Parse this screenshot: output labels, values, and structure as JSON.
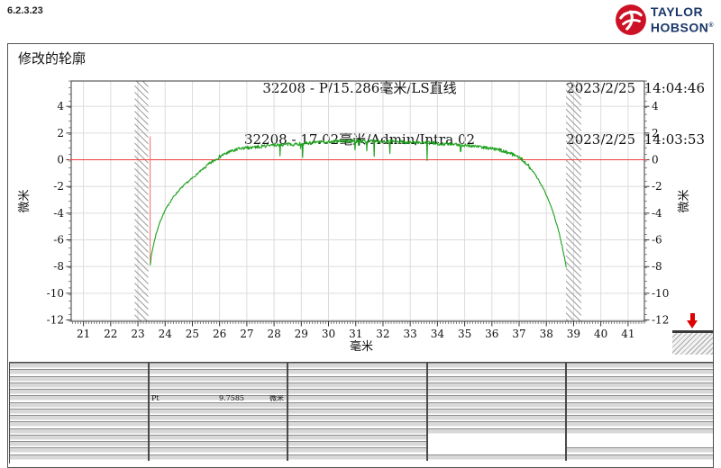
{
  "app": {
    "version": "6.2.3.23"
  },
  "brand": {
    "name_line1": "TAYLOR",
    "name_line2": "HOBSON",
    "registered_mark": "®",
    "logo_color": "#cd1126",
    "text_color": "#1a3668"
  },
  "header": {
    "title": "修改的轮廓",
    "measurement_line1": "32208 - P/15.286毫米/LS直线",
    "measurement_line2": "32208 - 17.02毫米/Admin/Intra 02",
    "modified_time": "2023/2/25  14:04:46",
    "measured_time": "2023/2/25  14:03:53"
  },
  "chart_data": {
    "type": "line",
    "title": "",
    "xlabel": "毫米",
    "ylabel_left": "微米",
    "ylabel_right": "微米",
    "xlim": [
      20.55,
      41.6
    ],
    "ylim": [
      -12.1,
      5.9
    ],
    "x_ticks": [
      21,
      22,
      23,
      24,
      25,
      26,
      27,
      28,
      29,
      30,
      31,
      32,
      33,
      34,
      35,
      36,
      37,
      38,
      39,
      40,
      41
    ],
    "y_ticks": [
      4,
      2,
      0,
      -2,
      -4,
      -6,
      -8,
      -10,
      -12
    ],
    "x_minor_step": 0.1,
    "y_minor_step": 0.5,
    "grid": true,
    "grid_color": "#dcdcdc",
    "border_color": "#3a3a3a",
    "zero_line": {
      "y": 0,
      "color": "#f03c3c"
    },
    "cursor": {
      "x": 23.45,
      "y_top": 1.75,
      "y_bottom": -7.75,
      "color": "#f56a6a"
    },
    "exclusion_bands_x": [
      [
        22.88,
        23.38
      ],
      [
        38.72,
        39.28
      ]
    ],
    "hatch_color": "#999999",
    "data_range_x": [
      23.45,
      38.73
    ],
    "trace": {
      "name": "measured-profile",
      "color": "#1da11d",
      "noise_amplitude": 0.13,
      "spike_rate": 0.022,
      "spike_max_depth": 1.05,
      "points": [
        [
          23.45,
          -7.85
        ],
        [
          23.5,
          -7.1
        ],
        [
          23.57,
          -6.4
        ],
        [
          23.65,
          -5.7
        ],
        [
          23.75,
          -5.0
        ],
        [
          23.87,
          -4.35
        ],
        [
          24.0,
          -3.8
        ],
        [
          24.15,
          -3.25
        ],
        [
          24.3,
          -2.8
        ],
        [
          24.5,
          -2.3
        ],
        [
          24.7,
          -1.9
        ],
        [
          24.9,
          -1.55
        ],
        [
          25.1,
          -1.2
        ],
        [
          25.3,
          -0.85
        ],
        [
          25.5,
          -0.5
        ],
        [
          25.7,
          -0.2
        ],
        [
          25.9,
          0.1
        ],
        [
          26.1,
          0.35
        ],
        [
          26.4,
          0.6
        ],
        [
          26.7,
          0.8
        ],
        [
          27.0,
          0.9
        ],
        [
          27.5,
          1.0
        ],
        [
          28.0,
          1.1
        ],
        [
          28.5,
          1.15
        ],
        [
          29.0,
          1.2
        ],
        [
          29.5,
          1.3
        ],
        [
          30.0,
          1.35
        ],
        [
          30.5,
          1.4
        ],
        [
          31.0,
          1.4
        ],
        [
          31.5,
          1.4
        ],
        [
          32.0,
          1.38
        ],
        [
          32.5,
          1.35
        ],
        [
          33.0,
          1.3
        ],
        [
          33.5,
          1.28
        ],
        [
          34.0,
          1.22
        ],
        [
          34.5,
          1.15
        ],
        [
          35.0,
          1.1
        ],
        [
          35.5,
          1.0
        ],
        [
          36.0,
          0.85
        ],
        [
          36.3,
          0.72
        ],
        [
          36.6,
          0.55
        ],
        [
          36.9,
          0.3
        ],
        [
          37.1,
          0.05
        ],
        [
          37.3,
          -0.35
        ],
        [
          37.5,
          -0.85
        ],
        [
          37.7,
          -1.45
        ],
        [
          37.9,
          -2.2
        ],
        [
          38.1,
          -3.1
        ],
        [
          38.25,
          -3.95
        ],
        [
          38.4,
          -4.95
        ],
        [
          38.5,
          -5.75
        ],
        [
          38.6,
          -6.7
        ],
        [
          38.68,
          -7.5
        ],
        [
          38.73,
          -8.05
        ]
      ]
    }
  },
  "results_table": {
    "row_count": 15,
    "column_count": 5,
    "parameters": [
      {
        "name": "Pt",
        "value": "9.7585",
        "unit": "微米",
        "row": 5,
        "column": 1
      }
    ],
    "white_cells": [
      [
        11,
        3
      ],
      [
        11,
        4
      ],
      [
        12,
        3
      ],
      [
        12,
        4
      ],
      [
        13,
        3
      ]
    ]
  },
  "probe_indicator": {
    "description": "stylus-direction-down",
    "arrow_color": "#dd0000"
  }
}
